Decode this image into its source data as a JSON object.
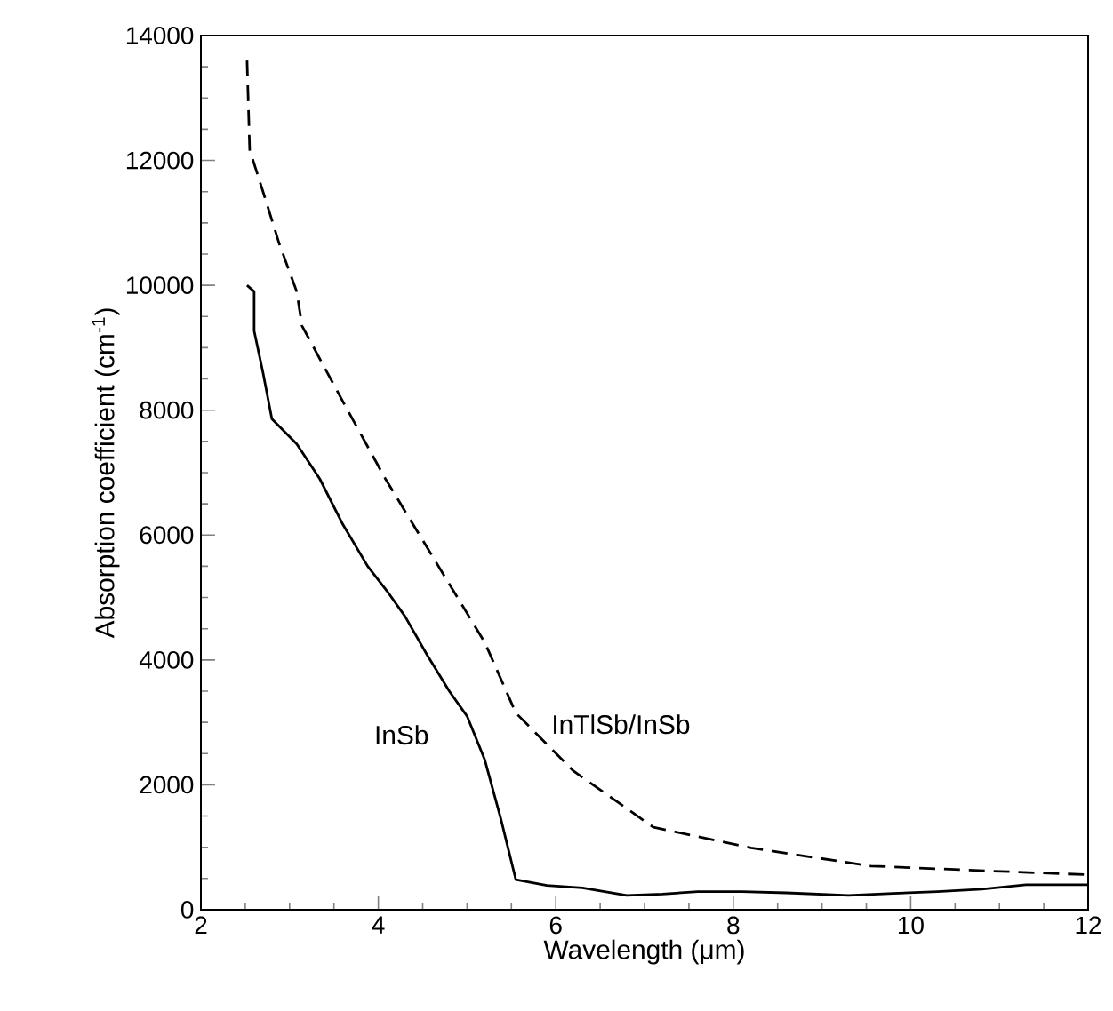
{
  "chart_data": {
    "type": "line",
    "xlabel": "Wavelength (μm)",
    "ylabel": "Absorption coefficient (cm$^{-1}$)",
    "xlim": [
      2,
      12
    ],
    "ylim": [
      0,
      14000
    ],
    "xticks": [
      2,
      4,
      6,
      8,
      10,
      12
    ],
    "yticks": [
      0,
      2000,
      4000,
      6000,
      8000,
      10000,
      12000,
      14000
    ],
    "series": [
      {
        "name": "InSb",
        "color": "#000000",
        "line_style": "solid",
        "x": [
          2.52,
          2.6,
          2.6,
          2.7,
          2.8,
          3.08,
          3.34,
          3.6,
          3.88,
          4.1,
          4.3,
          4.55,
          4.8,
          5.0,
          5.2,
          5.38,
          5.55,
          5.9,
          6.3,
          6.8,
          7.2,
          7.6,
          8.1,
          8.6,
          9.3,
          9.8,
          10.3,
          10.8,
          11.3,
          12
        ],
        "values": [
          10000,
          9900,
          9270,
          8600,
          7860,
          7460,
          6900,
          6170,
          5500,
          5100,
          4700,
          4080,
          3500,
          3100,
          2400,
          1460,
          480,
          390,
          350,
          230,
          250,
          290,
          290,
          270,
          230,
          260,
          290,
          330,
          400,
          400
        ]
      },
      {
        "name": "InTlSb/InSb",
        "color": "#000000",
        "line_style": "dashed",
        "x": [
          2.52,
          2.55,
          2.74,
          2.88,
          3.08,
          3.14,
          3.6,
          4.08,
          4.55,
          5.2,
          5.55,
          6.2,
          7.1,
          8.2,
          9.55,
          10.9,
          12
        ],
        "values": [
          13600,
          12170,
          11320,
          10680,
          9900,
          9350,
          8140,
          6900,
          5800,
          4280,
          3150,
          2220,
          1320,
          990,
          700,
          620,
          560
        ]
      }
    ]
  }
}
